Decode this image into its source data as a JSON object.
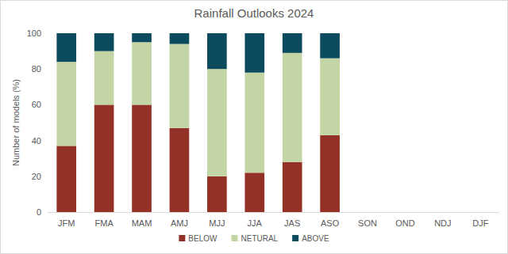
{
  "chart_data": {
    "type": "bar",
    "stacked": true,
    "title": "Rainfall Outlooks 2024",
    "y_label": "Number of models (%)",
    "categories": [
      "JFM",
      "FMA",
      "MAM",
      "AMJ",
      "MJJ",
      "JJA",
      "JAS",
      "ASO",
      "SON",
      "OND",
      "NDJ",
      "DJF"
    ],
    "series": [
      {
        "name": "BELOW",
        "color": "#943126",
        "values": [
          37,
          60,
          60,
          47,
          20,
          22,
          28,
          43,
          null,
          null,
          null,
          null
        ]
      },
      {
        "name": "NETURAL",
        "color": "#c3d5a5",
        "values": [
          47,
          30,
          35,
          47,
          60,
          56,
          61,
          43,
          null,
          null,
          null,
          null
        ]
      },
      {
        "name": "ABOVE",
        "color": "#0c4a5e",
        "values": [
          16,
          10,
          5,
          6,
          20,
          22,
          11,
          14,
          null,
          null,
          null,
          null
        ]
      }
    ],
    "ylim": [
      0,
      100
    ],
    "yticks": [
      0,
      20,
      40,
      60,
      80,
      100
    ],
    "grid": false,
    "legend": "bottom"
  }
}
